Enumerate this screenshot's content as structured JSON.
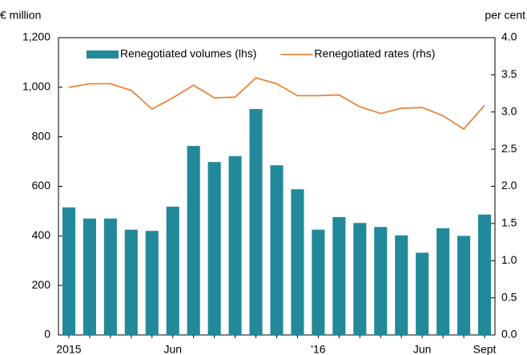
{
  "chart_data": {
    "type": "bar_line",
    "y_label": "€ million",
    "y2_label": "per cent",
    "categories": [
      "2015",
      null,
      null,
      null,
      null,
      "Jun",
      null,
      null,
      null,
      null,
      null,
      null,
      "'16",
      null,
      null,
      null,
      null,
      "Jun",
      null,
      null,
      "Sept"
    ],
    "series": [
      {
        "name": "Renegotiated volumes (lhs)",
        "type": "bar",
        "color": "#22899b",
        "values": [
          515,
          470,
          470,
          425,
          420,
          518,
          763,
          698,
          722,
          912,
          685,
          588,
          425,
          476,
          452,
          436,
          402,
          332,
          431,
          400,
          486
        ]
      },
      {
        "name": "Renegotiated rates (rhs)",
        "type": "line",
        "axis": "y2",
        "color": "#e8853a",
        "values": [
          3.33,
          3.38,
          3.38,
          3.29,
          3.04,
          3.19,
          3.36,
          3.19,
          3.2,
          3.46,
          3.38,
          3.22,
          3.22,
          3.23,
          3.07,
          2.98,
          3.05,
          3.06,
          2.95,
          2.77,
          3.09
        ]
      }
    ],
    "ylim": [
      0,
      1200
    ],
    "yticks": [
      0,
      200,
      400,
      600,
      800,
      {
        "value": 1000,
        "label": "1,000"
      },
      {
        "value": 1200,
        "label": "1,200"
      }
    ],
    "y2lim": [
      0,
      4
    ],
    "y2ticks": [
      {
        "value": 0,
        "label": "0.0"
      },
      0.5,
      {
        "value": 1,
        "label": "1.0"
      },
      1.5,
      {
        "value": 2,
        "label": "2.0"
      },
      2.5,
      {
        "value": 3,
        "label": "3.0"
      },
      3.5,
      {
        "value": 4,
        "label": "4.0"
      }
    ],
    "legend": "top"
  }
}
